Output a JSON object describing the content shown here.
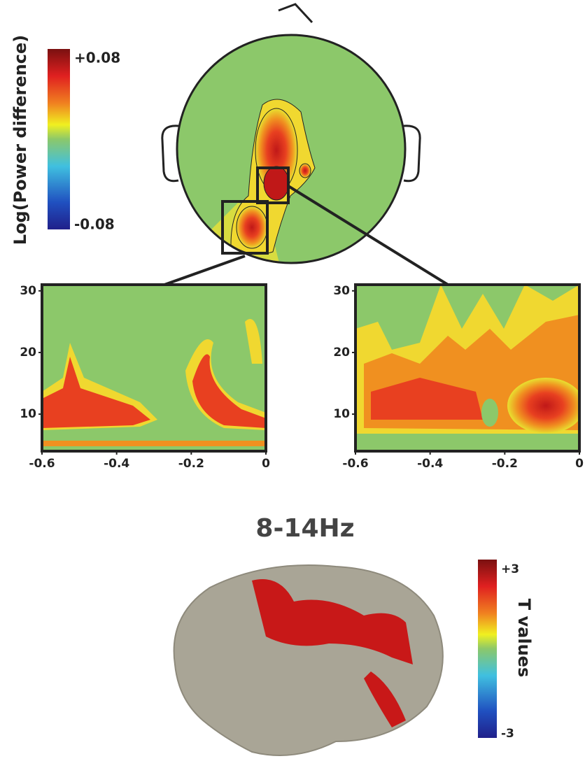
{
  "colorbar1": {
    "label": "Log(Power difference)",
    "max": {
      "value": 0.08,
      "label": "+0.08"
    },
    "min": {
      "value": -0.08,
      "label": "-0.08"
    }
  },
  "panels": [
    {
      "xlim": [
        -0.6,
        0
      ],
      "ylim": [
        4,
        31
      ],
      "xticks": [
        -0.6,
        -0.4,
        -0.2,
        0
      ],
      "yticks": [
        10,
        20,
        30
      ]
    },
    {
      "xlim": [
        -0.6,
        0
      ],
      "ylim": [
        4,
        31
      ],
      "xticks": [
        -0.6,
        -0.4,
        -0.2,
        0
      ],
      "yticks": [
        10,
        20,
        30
      ]
    }
  ],
  "title": "8-14Hz",
  "colorbar2": {
    "label": "T values",
    "max": {
      "value": 3,
      "label": "+3"
    },
    "min": {
      "value": -3,
      "label": "-3"
    }
  }
}
